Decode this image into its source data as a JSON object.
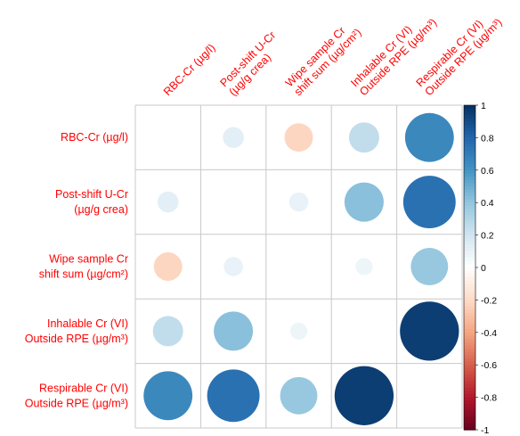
{
  "chart_data": {
    "type": "heatmap",
    "subtype": "correlation-circles",
    "upper_half": false,
    "diagonal_blank": true,
    "variables_lines": [
      [
        "RBC-Cr (µg/l)"
      ],
      [
        "Post-shift U-Cr",
        "(µg/g crea)"
      ],
      [
        "Wipe sample Cr",
        "shift sum (µg/cm²)"
      ],
      [
        "Inhalable Cr (VI)",
        "Outside RPE (µg/m³)"
      ],
      [
        "Respirable Cr (VI)",
        "Outside RPE (µg/m³)"
      ]
    ],
    "matrix": [
      [
        null,
        0.12,
        -0.22,
        0.25,
        0.65
      ],
      [
        0.12,
        null,
        0.1,
        0.42,
        0.75
      ],
      [
        -0.22,
        0.1,
        null,
        0.08,
        0.38
      ],
      [
        0.25,
        0.42,
        0.08,
        null,
        0.95
      ],
      [
        0.65,
        0.75,
        0.38,
        0.95,
        null
      ]
    ],
    "colorbar": {
      "ticks": [
        "1",
        "0.8",
        "0.6",
        "0.4",
        "0.2",
        "0",
        "-0.2",
        "-0.4",
        "-0.6",
        "-0.8",
        "-1"
      ],
      "range": [
        -1,
        1
      ],
      "colors": [
        "#67001F",
        "#B2182B",
        "#D6604D",
        "#F4A582",
        "#FDDBC7",
        "#FFFFFF",
        "#D1E5F0",
        "#92C5DE",
        "#4393C3",
        "#2166AC",
        "#053061"
      ]
    },
    "label_color": "#ff0000",
    "grid_color": "#c8c8c8"
  }
}
